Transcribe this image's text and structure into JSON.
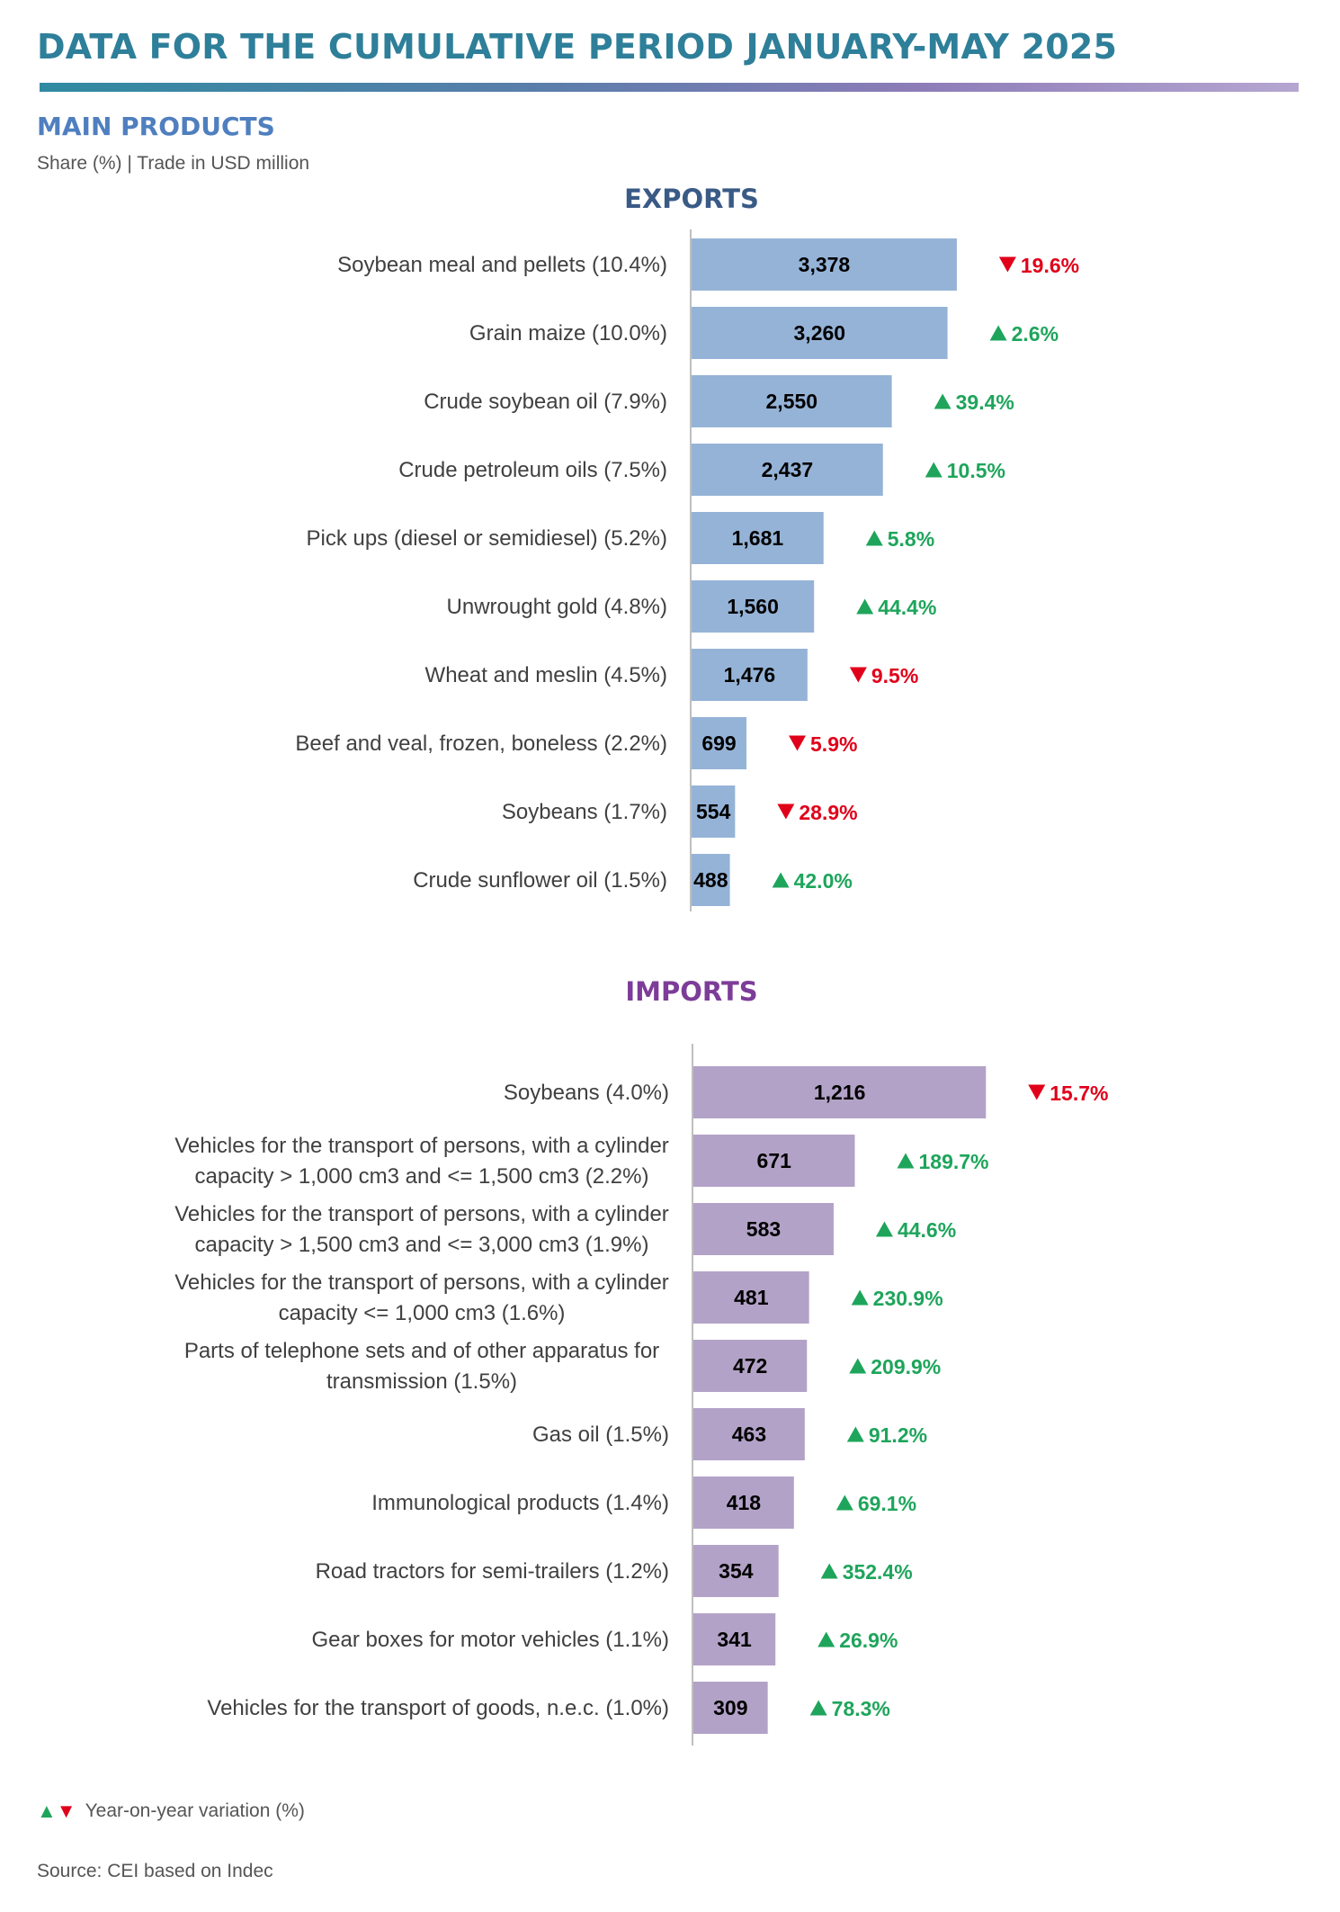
{
  "header": {
    "title": "DATA FOR THE CUMULATIVE PERIOD JANUARY-MAY 2025",
    "section": "MAIN PRODUCTS",
    "subtitle": "Share (%) | Trade in USD million"
  },
  "colors": {
    "title": "#2e7f99",
    "section": "#4f7fbf",
    "exports_bar": "#95b3d7",
    "imports_bar": "#b3a2c7",
    "up": "#1ea55b",
    "down": "#e0001a"
  },
  "legend": {
    "up_icon": "triangle-up",
    "down_icon": "triangle-down",
    "label": "Year-on-year variation (%)"
  },
  "source": "Source: CEI based on Indec",
  "chart_data": [
    {
      "type": "bar",
      "orientation": "horizontal",
      "title": "EXPORTS",
      "categories": [
        "Soybean meal and pellets (10.4%)",
        "Grain maize (10.0%)",
        "Crude soybean oil (7.9%)",
        "Crude petroleum oils (7.5%)",
        "Pick ups (diesel or semidiesel) (5.2%)",
        "Unwrought gold (4.8%)",
        "Wheat and meslin (4.5%)",
        "Beef and veal, frozen, boneless (2.2%)",
        "Soybeans (1.7%)",
        "Crude sunflower oil  (1.5%)"
      ],
      "values": [
        3378,
        3260,
        2550,
        2437,
        1681,
        1560,
        1476,
        699,
        554,
        488
      ],
      "value_labels": [
        "3,378",
        "3,260",
        "2,550",
        "2,437",
        "1,681",
        "1,560",
        "1,476",
        "699",
        "554",
        "488"
      ],
      "changes": [
        "19.6%",
        "2.6%",
        "39.4%",
        "10.5%",
        "5.8%",
        "44.4%",
        "9.5%",
        "5.9%",
        "28.9%",
        "42.0%"
      ],
      "directions": [
        "down",
        "up",
        "up",
        "up",
        "up",
        "up",
        "down",
        "down",
        "down",
        "up"
      ],
      "xlim": [
        0,
        3600
      ]
    },
    {
      "type": "bar",
      "orientation": "horizontal",
      "title": "IMPORTS",
      "categories": [
        [
          "Soybeans (4.0%)"
        ],
        [
          "Vehicles for the transport of persons, with a cylinder",
          "capacity > 1,000 cm3 and <= 1,500 cm3 (2.2%)"
        ],
        [
          "Vehicles for the transport of persons, with a cylinder",
          "capacity > 1,500 cm3 and <= 3,000 cm3  (1.9%)"
        ],
        [
          "Vehicles for the transport of persons, with a cylinder",
          "capacity <= 1,000 cm3 (1.6%)"
        ],
        [
          "Parts of telephone sets and of other apparatus for",
          "transmission (1.5%)"
        ],
        [
          "Gas oil (1.5%)"
        ],
        [
          "Immunological products (1.4%)"
        ],
        [
          "Road tractors for semi-trailers (1.2%)"
        ],
        [
          "Gear boxes for motor vehicles (1.1%)"
        ],
        [
          "Vehicles for the transport of goods, n.e.c. (1.0%)"
        ]
      ],
      "values": [
        1216,
        671,
        583,
        481,
        472,
        463,
        418,
        354,
        341,
        309
      ],
      "value_labels": [
        "1,216",
        "671",
        "583",
        "481",
        "472",
        "463",
        "418",
        "354",
        "341",
        "309"
      ],
      "changes": [
        "15.7%",
        "189.7%",
        "44.6%",
        "230.9%",
        "209.9%",
        "91.2%",
        "69.1%",
        "352.4%",
        "26.9%",
        "78.3%"
      ],
      "directions": [
        "down",
        "up",
        "up",
        "up",
        "up",
        "up",
        "up",
        "up",
        "up",
        "up"
      ],
      "xlim": [
        0,
        1300
      ]
    }
  ]
}
